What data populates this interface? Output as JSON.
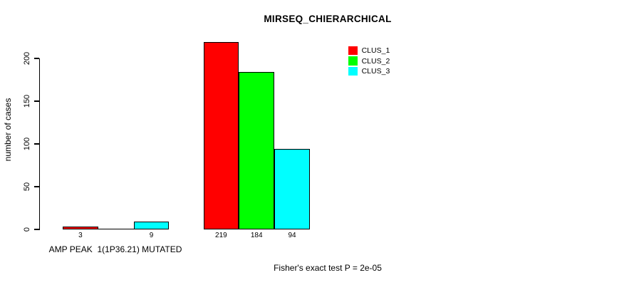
{
  "chart_data": {
    "type": "bar",
    "title": "MIRSEQ_CHIERARCHICAL",
    "ylabel": "number of cases",
    "xlabel": "",
    "ylim": [
      0,
      220
    ],
    "yticks": [
      0,
      50,
      100,
      150,
      200
    ],
    "grid": false,
    "legend_position": "top-right",
    "series": [
      {
        "name": "CLUS_1",
        "color": "#ff0000"
      },
      {
        "name": "CLUS_2",
        "color": "#00ff00"
      },
      {
        "name": "CLUS_3",
        "color": "#00ffff"
      }
    ],
    "groups": [
      {
        "label": "AMP PEAK  1(1P36.21) MUTATED",
        "values": [
          3,
          0,
          9
        ],
        "value_labels": [
          "3",
          "",
          "9"
        ]
      },
      {
        "label": "",
        "values": [
          219,
          184,
          94
        ],
        "value_labels": [
          "219",
          "184",
          "94"
        ]
      }
    ],
    "annotation": "Fisher's exact test P = 2e-05",
    "colors": {
      "background": "#ffffff",
      "axis": "#000000",
      "text": "#000000"
    }
  }
}
